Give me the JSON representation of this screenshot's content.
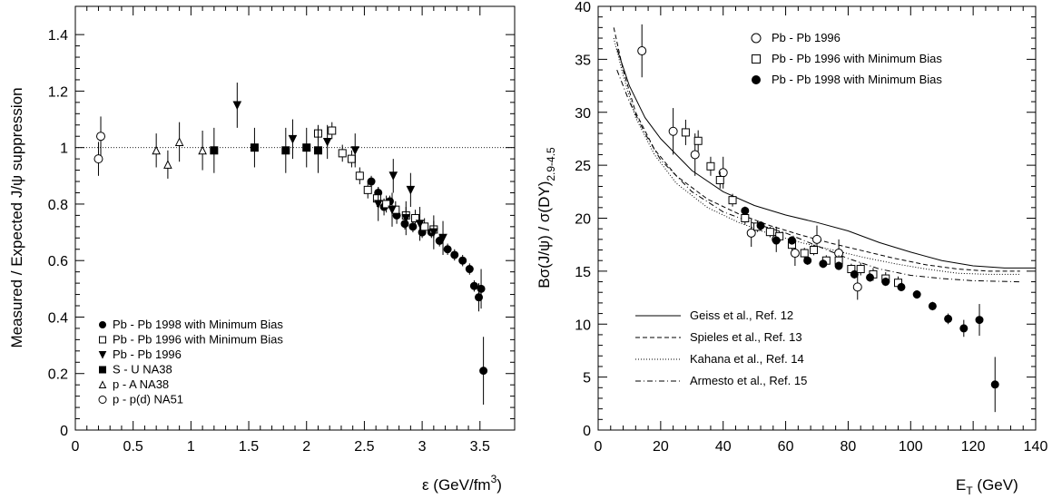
{
  "chart_data": [
    {
      "type": "scatter",
      "xlabel": "ε  (GeV/fm",
      "xlabel_sup": "3",
      "xlabel_end": ")",
      "ylabel": "Measured / Expected  J/ψ suppression",
      "xlim": [
        0,
        3.8
      ],
      "ylim": [
        0,
        1.5
      ],
      "xticks": [
        "0",
        "0.5",
        "1",
        "1.5",
        "2",
        "2.5",
        "3",
        "3.5"
      ],
      "xtick_values": [
        0,
        0.5,
        1,
        1.5,
        2,
        2.5,
        3,
        3.5
      ],
      "yticks": [
        "0",
        "0.2",
        "0.4",
        "0.6",
        "0.8",
        "1",
        "1.2",
        "1.4"
      ],
      "ytick_values": [
        0,
        0.2,
        0.4,
        0.6,
        0.8,
        1,
        1.2,
        1.4
      ],
      "reference_line": 1,
      "legend_position": "bottom-left",
      "series": [
        {
          "name": "Pb - Pb 1998 with Minimum Bias",
          "marker": "filled-circle",
          "points": [
            [
              2.56,
              0.88,
              0.02
            ],
            [
              2.62,
              0.84,
              0.02
            ],
            [
              2.67,
              0.79,
              0.03
            ],
            [
              2.72,
              0.81,
              0.02
            ],
            [
              2.78,
              0.76,
              0.03
            ],
            [
              2.85,
              0.73,
              0.02
            ],
            [
              2.92,
              0.72,
              0.02
            ],
            [
              3.0,
              0.7,
              0.02
            ],
            [
              3.08,
              0.7,
              0.02
            ],
            [
              3.15,
              0.67,
              0.02
            ],
            [
              3.22,
              0.64,
              0.02
            ],
            [
              3.28,
              0.62,
              0.02
            ],
            [
              3.35,
              0.6,
              0.02
            ],
            [
              3.41,
              0.57,
              0.02
            ],
            [
              3.45,
              0.51,
              0.02
            ],
            [
              3.49,
              0.47,
              0.05
            ],
            [
              3.51,
              0.5,
              0.07
            ],
            [
              3.53,
              0.21,
              0.12
            ]
          ]
        },
        {
          "name": "Pb - Pb 1996 with Minimum Bias",
          "marker": "open-square",
          "points": [
            [
              2.1,
              1.05,
              0.03
            ],
            [
              2.22,
              1.06,
              0.03
            ],
            [
              2.31,
              0.98,
              0.03
            ],
            [
              2.39,
              0.96,
              0.03
            ],
            [
              2.46,
              0.9,
              0.03
            ],
            [
              2.53,
              0.85,
              0.03
            ],
            [
              2.61,
              0.82,
              0.03
            ],
            [
              2.69,
              0.8,
              0.03
            ],
            [
              2.77,
              0.78,
              0.03
            ],
            [
              2.86,
              0.76,
              0.03
            ],
            [
              2.94,
              0.75,
              0.03
            ],
            [
              3.02,
              0.72,
              0.03
            ],
            [
              3.1,
              0.71,
              0.03
            ]
          ]
        },
        {
          "name": "Pb - Pb 1996",
          "marker": "filled-triangle-down",
          "points": [
            [
              1.4,
              1.15,
              0.08
            ],
            [
              1.88,
              1.03,
              0.07
            ],
            [
              2.18,
              1.02,
              0.06
            ],
            [
              2.42,
              0.99,
              0.06
            ],
            [
              2.62,
              0.8,
              0.06
            ],
            [
              2.74,
              0.78,
              0.06
            ],
            [
              2.86,
              0.75,
              0.06
            ],
            [
              2.98,
              0.73,
              0.06
            ],
            [
              3.1,
              0.7,
              0.06
            ],
            [
              3.18,
              0.68,
              0.06
            ],
            [
              2.75,
              0.9,
              0.06
            ],
            [
              2.9,
              0.85,
              0.06
            ]
          ]
        },
        {
          "name": "S - U     NA38",
          "marker": "filled-square",
          "points": [
            [
              1.2,
              0.99,
              0.08
            ],
            [
              1.55,
              1.0,
              0.07
            ],
            [
              1.82,
              0.99,
              0.08
            ],
            [
              2.0,
              1.0,
              0.07
            ],
            [
              2.1,
              0.99,
              0.08
            ]
          ]
        },
        {
          "name": "p - A      NA38",
          "marker": "open-triangle-up",
          "points": [
            [
              0.7,
              0.99,
              0.06
            ],
            [
              0.8,
              0.94,
              0.05
            ],
            [
              0.9,
              1.02,
              0.07
            ],
            [
              1.1,
              0.99,
              0.07
            ]
          ]
        },
        {
          "name": "p - p(d)  NA51",
          "marker": "open-circle",
          "points": [
            [
              0.2,
              0.96,
              0.06
            ],
            [
              0.22,
              1.04,
              0.07
            ]
          ]
        }
      ]
    },
    {
      "type": "scatter",
      "xlabel": "E",
      "xlabel_sub": "T",
      "xlabel_end": "  (GeV)",
      "ylabel_main": "Bσ(J/ψ) / σ(DY)",
      "ylabel_sub": "2.9-4.5",
      "xlim": [
        0,
        140
      ],
      "ylim": [
        0,
        40
      ],
      "xticks": [
        "0",
        "20",
        "40",
        "60",
        "80",
        "100",
        "120",
        "140"
      ],
      "xtick_values": [
        0,
        20,
        40,
        60,
        80,
        100,
        120,
        140
      ],
      "yticks": [
        "0",
        "5",
        "10",
        "15",
        "20",
        "25",
        "30",
        "35",
        "40"
      ],
      "ytick_values": [
        0,
        5,
        10,
        15,
        20,
        25,
        30,
        35,
        40
      ],
      "legend_position": "top-right",
      "series": [
        {
          "name": "Pb - Pb 1996",
          "marker": "open-circle",
          "points": [
            [
              14,
              35.8,
              2.5
            ],
            [
              24,
              28.2,
              2.2
            ],
            [
              31,
              26,
              2
            ],
            [
              40,
              24.3,
              1.5
            ],
            [
              49,
              18.6,
              1.3
            ],
            [
              57,
              18,
              1.2
            ],
            [
              63,
              16.7,
              1.2
            ],
            [
              70,
              18,
              1.3
            ],
            [
              77,
              16.7,
              1.3
            ],
            [
              83,
              13.5,
              1.2
            ]
          ]
        },
        {
          "name": "Pb - Pb 1996 with Minimum Bias",
          "marker": "open-square",
          "points": [
            [
              28,
              28.1,
              1.2
            ],
            [
              32,
              27.3,
              1
            ],
            [
              36,
              24.9,
              0.9
            ],
            [
              39,
              23.6,
              0.8
            ],
            [
              43,
              21.7,
              0.6
            ],
            [
              47,
              20,
              0.6
            ],
            [
              51,
              19.2,
              0.5
            ],
            [
              55,
              18.7,
              0.5
            ],
            [
              58,
              18.3,
              0.5
            ],
            [
              62,
              17.5,
              0.5
            ],
            [
              66,
              16.7,
              0.5
            ],
            [
              69,
              17,
              0.5
            ],
            [
              73,
              16,
              0.5
            ],
            [
              77,
              16,
              0.5
            ],
            [
              81,
              15.2,
              0.5
            ],
            [
              84,
              15.2,
              0.6
            ],
            [
              88,
              14.7,
              0.6
            ],
            [
              92,
              14.3,
              0.6
            ],
            [
              96,
              13.9,
              0.6
            ]
          ]
        },
        {
          "name": "Pb - Pb 1998 with Minimum Bias",
          "marker": "filled-circle",
          "points": [
            [
              47,
              20.7,
              0.4
            ],
            [
              52,
              19.3,
              0.4
            ],
            [
              57,
              17.9,
              0.4
            ],
            [
              62,
              17.9,
              0.4
            ],
            [
              67,
              16,
              0.4
            ],
            [
              72,
              15.7,
              0.4
            ],
            [
              77,
              15.5,
              0.4
            ],
            [
              82,
              14.7,
              0.4
            ],
            [
              87,
              14.4,
              0.4
            ],
            [
              92,
              14,
              0.4
            ],
            [
              97,
              13.5,
              0.4
            ],
            [
              102,
              12.8,
              0.4
            ],
            [
              107,
              11.7,
              0.4
            ],
            [
              112,
              10.5,
              0.5
            ],
            [
              117,
              9.6,
              0.8
            ],
            [
              122,
              10.4,
              1.5
            ],
            [
              127,
              4.3,
              2.6
            ]
          ]
        }
      ],
      "curves": [
        {
          "name": "Geiss et al., Ref. 12",
          "dash": "solid",
          "points": [
            [
              6,
              36
            ],
            [
              10,
              32.5
            ],
            [
              15,
              29.5
            ],
            [
              20,
              27.5
            ],
            [
              30,
              24.5
            ],
            [
              40,
              22.5
            ],
            [
              50,
              21.2
            ],
            [
              60,
              20.3
            ],
            [
              70,
              19.6
            ],
            [
              80,
              18.8
            ],
            [
              90,
              17.7
            ],
            [
              100,
              16.8
            ],
            [
              110,
              16
            ],
            [
              120,
              15.5
            ],
            [
              130,
              15.3
            ],
            [
              140,
              15.3
            ]
          ]
        },
        {
          "name": "Spieles et al., Ref. 13",
          "dash": "dashed",
          "points": [
            [
              5,
              38
            ],
            [
              8,
              34
            ],
            [
              12,
              30
            ],
            [
              18,
              26.5
            ],
            [
              25,
              24
            ],
            [
              35,
              21.8
            ],
            [
              45,
              20.4
            ],
            [
              55,
              19.3
            ],
            [
              65,
              18.4
            ],
            [
              75,
              17.6
            ],
            [
              85,
              16.9
            ],
            [
              95,
              16.2
            ],
            [
              105,
              15.6
            ],
            [
              115,
              15.2
            ],
            [
              125,
              15
            ],
            [
              135,
              15
            ]
          ]
        },
        {
          "name": "Kahana et al., Ref. 14",
          "dash": "dotted",
          "points": [
            [
              5,
              37
            ],
            [
              8,
              33.5
            ],
            [
              12,
              29.5
            ],
            [
              18,
              26
            ],
            [
              25,
              23.3
            ],
            [
              35,
              21
            ],
            [
              45,
              19.6
            ],
            [
              55,
              18.5
            ],
            [
              65,
              17.7
            ],
            [
              75,
              17
            ],
            [
              85,
              16.3
            ],
            [
              95,
              15.7
            ],
            [
              105,
              15.2
            ],
            [
              115,
              14.8
            ],
            [
              125,
              14.7
            ],
            [
              135,
              14.7
            ]
          ]
        },
        {
          "name": "Armesto et al., Ref. 15",
          "dash": "dashdot",
          "points": [
            [
              6,
              34
            ],
            [
              10,
              31
            ],
            [
              15,
              28
            ],
            [
              20,
              25.5
            ],
            [
              30,
              22.5
            ],
            [
              40,
              20.6
            ],
            [
              50,
              19.5
            ],
            [
              60,
              18.6
            ],
            [
              70,
              17.4
            ],
            [
              80,
              16.2
            ],
            [
              90,
              15.2
            ],
            [
              100,
              14.6
            ],
            [
              110,
              14.3
            ],
            [
              120,
              14.1
            ],
            [
              135,
              14
            ]
          ]
        }
      ]
    }
  ]
}
